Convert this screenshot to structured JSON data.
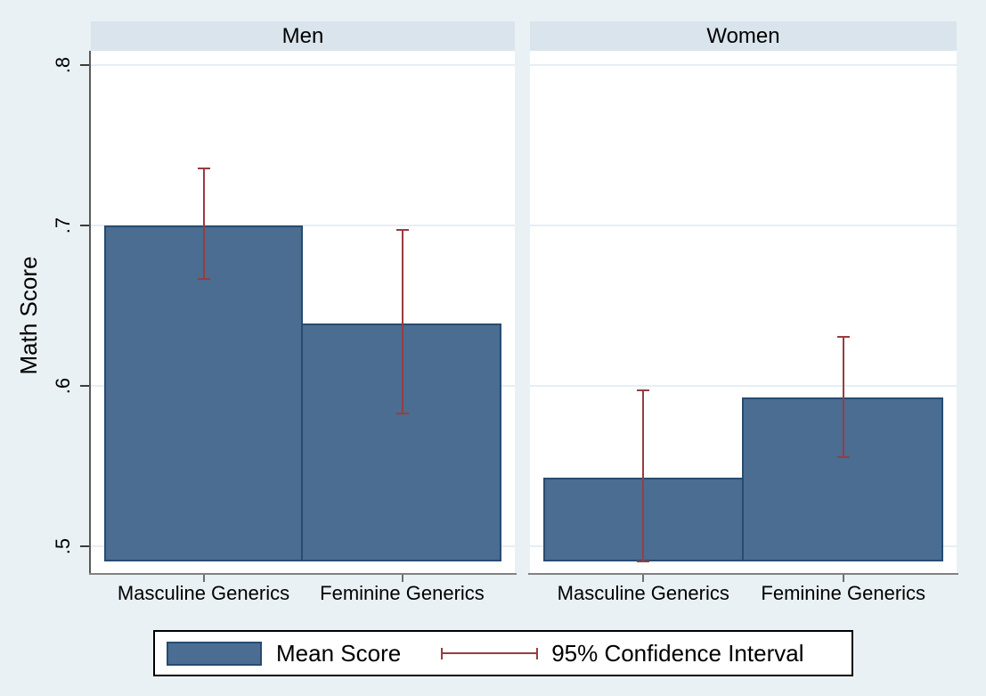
{
  "colors": {
    "background": "#eaf1f5",
    "panel_header_bg": "#d9e4ec",
    "plot_bg": "#ffffff",
    "gridline": "#e7eef3",
    "bar_fill": "#4a6d91",
    "bar_border": "#274c70",
    "ci_color": "#973d41",
    "axis_line": "#828282",
    "legend_border": "#000000"
  },
  "chart_data": {
    "type": "bar",
    "title": "",
    "ylabel": "Math Score",
    "xlabel": "",
    "categories": [
      "Masculine Generics",
      "Feminine Generics"
    ],
    "y_ticks": [
      ".5",
      ".6",
      ".7",
      ".8"
    ],
    "y_tick_values": [
      0.5,
      0.6,
      0.7,
      0.8
    ],
    "ylim": [
      0.49,
      0.809
    ],
    "grid": true,
    "error_bars": "95% confidence interval",
    "panels": [
      {
        "title": "Men",
        "series": [
          {
            "category": "Masculine Generics",
            "mean": 0.7,
            "ci_low": 0.666,
            "ci_high": 0.736
          },
          {
            "category": "Feminine Generics",
            "mean": 0.639,
            "ci_low": 0.582,
            "ci_high": 0.698
          }
        ]
      },
      {
        "title": "Women",
        "series": [
          {
            "category": "Masculine Generics",
            "mean": 0.543,
            "ci_low": 0.49,
            "ci_high": 0.598
          },
          {
            "category": "Feminine Generics",
            "mean": 0.593,
            "ci_low": 0.555,
            "ci_high": 0.631
          }
        ]
      }
    ],
    "legend_position": "bottom",
    "legend": [
      {
        "type": "bar",
        "label": "Mean Score"
      },
      {
        "type": "ci",
        "label": "95% Confidence Interval"
      }
    ]
  }
}
